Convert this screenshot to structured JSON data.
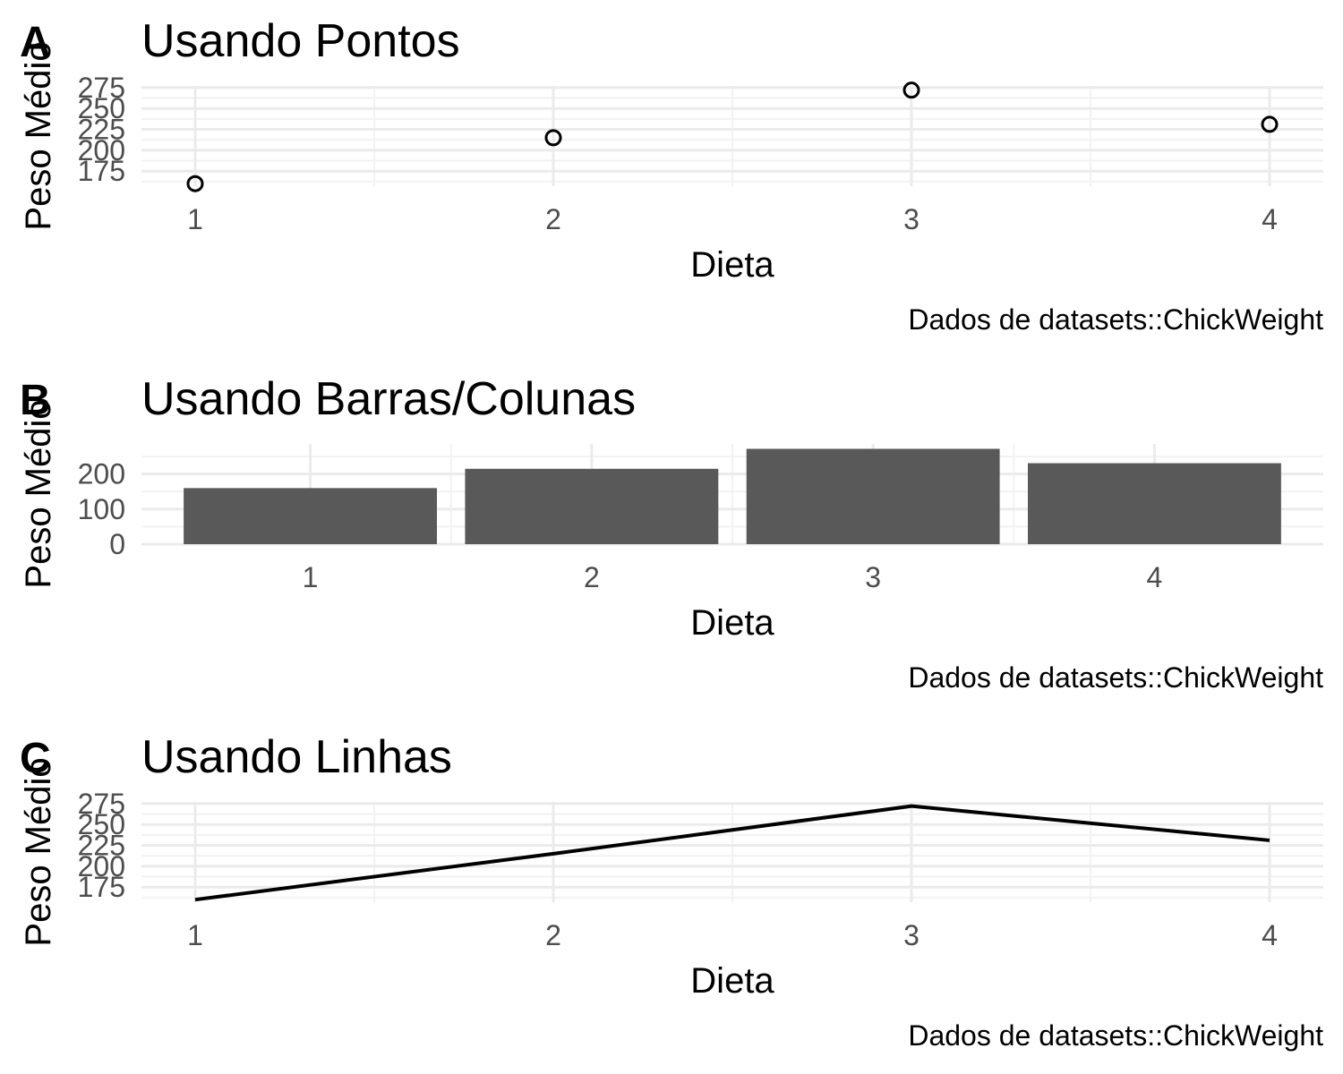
{
  "chart_data": [
    {
      "tag": "A",
      "type": "scatter",
      "title": "Usando Pontos",
      "xlabel": "Dieta",
      "ylabel": "Peso Médio",
      "caption": "Dados de datasets::ChickWeight",
      "categories": [
        "1",
        "2",
        "3",
        "4"
      ],
      "values": [
        160,
        215,
        272,
        231
      ],
      "ylim": [
        157,
        277
      ],
      "yticks": [
        175,
        200,
        225,
        250,
        275
      ],
      "grid": true,
      "marker": "open-circle"
    },
    {
      "tag": "B",
      "type": "bar",
      "title": "Usando Barras/Colunas",
      "xlabel": "Dieta",
      "ylabel": "Peso Médio",
      "caption": "Dados de datasets::ChickWeight",
      "categories": [
        "1",
        "2",
        "3",
        "4"
      ],
      "values": [
        160,
        215,
        272,
        231
      ],
      "ylim": [
        0,
        286
      ],
      "yticks": [
        0,
        100,
        200
      ],
      "grid": true,
      "bar_color": "#595959"
    },
    {
      "tag": "C",
      "type": "line",
      "title": "Usando Linhas",
      "xlabel": "Dieta",
      "ylabel": "Peso Médio",
      "caption": "Dados de datasets::ChickWeight",
      "categories": [
        "1",
        "2",
        "3",
        "4"
      ],
      "values": [
        160,
        215,
        272,
        231
      ],
      "ylim": [
        157,
        277
      ],
      "yticks": [
        175,
        200,
        225,
        250,
        275
      ],
      "grid": true,
      "line_color": "#000000"
    }
  ]
}
